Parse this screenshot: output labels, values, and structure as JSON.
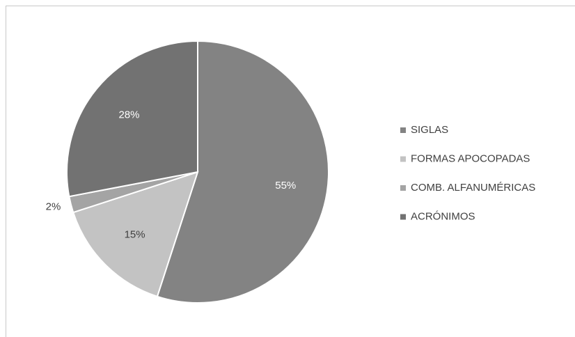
{
  "chart_data": {
    "type": "pie",
    "categories": [
      "SIGLAS",
      "FORMAS APOCOPADAS",
      "COMB. ALFANUMÉRICAS",
      "ACRÓNIMOS"
    ],
    "values": [
      55,
      15,
      2,
      28
    ],
    "value_labels": [
      "55%",
      "15%",
      "2%",
      "28%"
    ],
    "colors": [
      "#838383",
      "#c3c3c3",
      "#a4a4a4",
      "#727272"
    ],
    "legend": "right"
  }
}
